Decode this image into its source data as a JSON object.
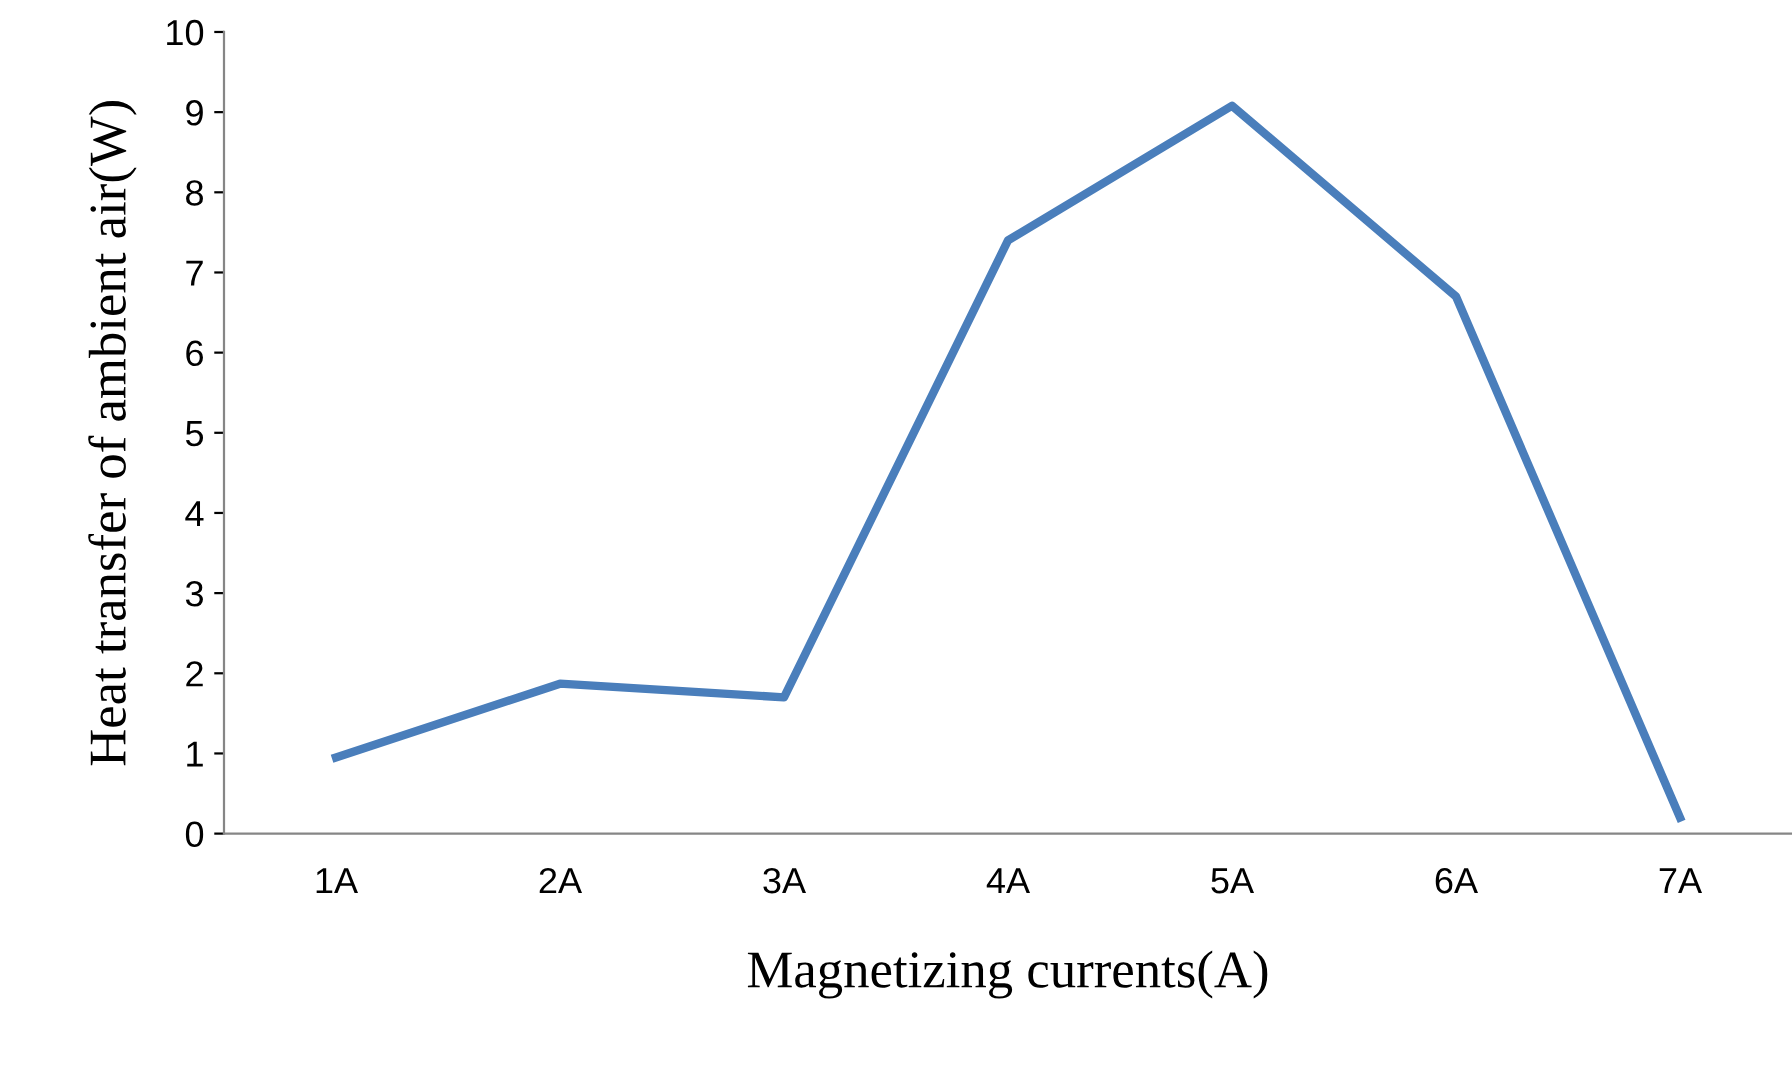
{
  "chart_data": {
    "type": "line",
    "xlabel": "Magnetizing currents(A)",
    "ylabel": "Heat transfer of ambient air(W)",
    "categories": [
      "1A",
      "2A",
      "3A",
      "4A",
      "5A",
      "6A",
      "7A"
    ],
    "series": [
      {
        "color": "#4a7ebb",
        "values": [
          0.95,
          1.87,
          1.7,
          7.4,
          9.08,
          6.7,
          0.2
        ]
      }
    ],
    "ylim": [
      0,
      10
    ],
    "yticks": [
      0,
      1,
      2,
      3,
      4,
      5,
      6,
      7,
      8,
      9,
      10
    ],
    "grid": false,
    "legend": false,
    "marker": "none",
    "line_style": "solid"
  }
}
